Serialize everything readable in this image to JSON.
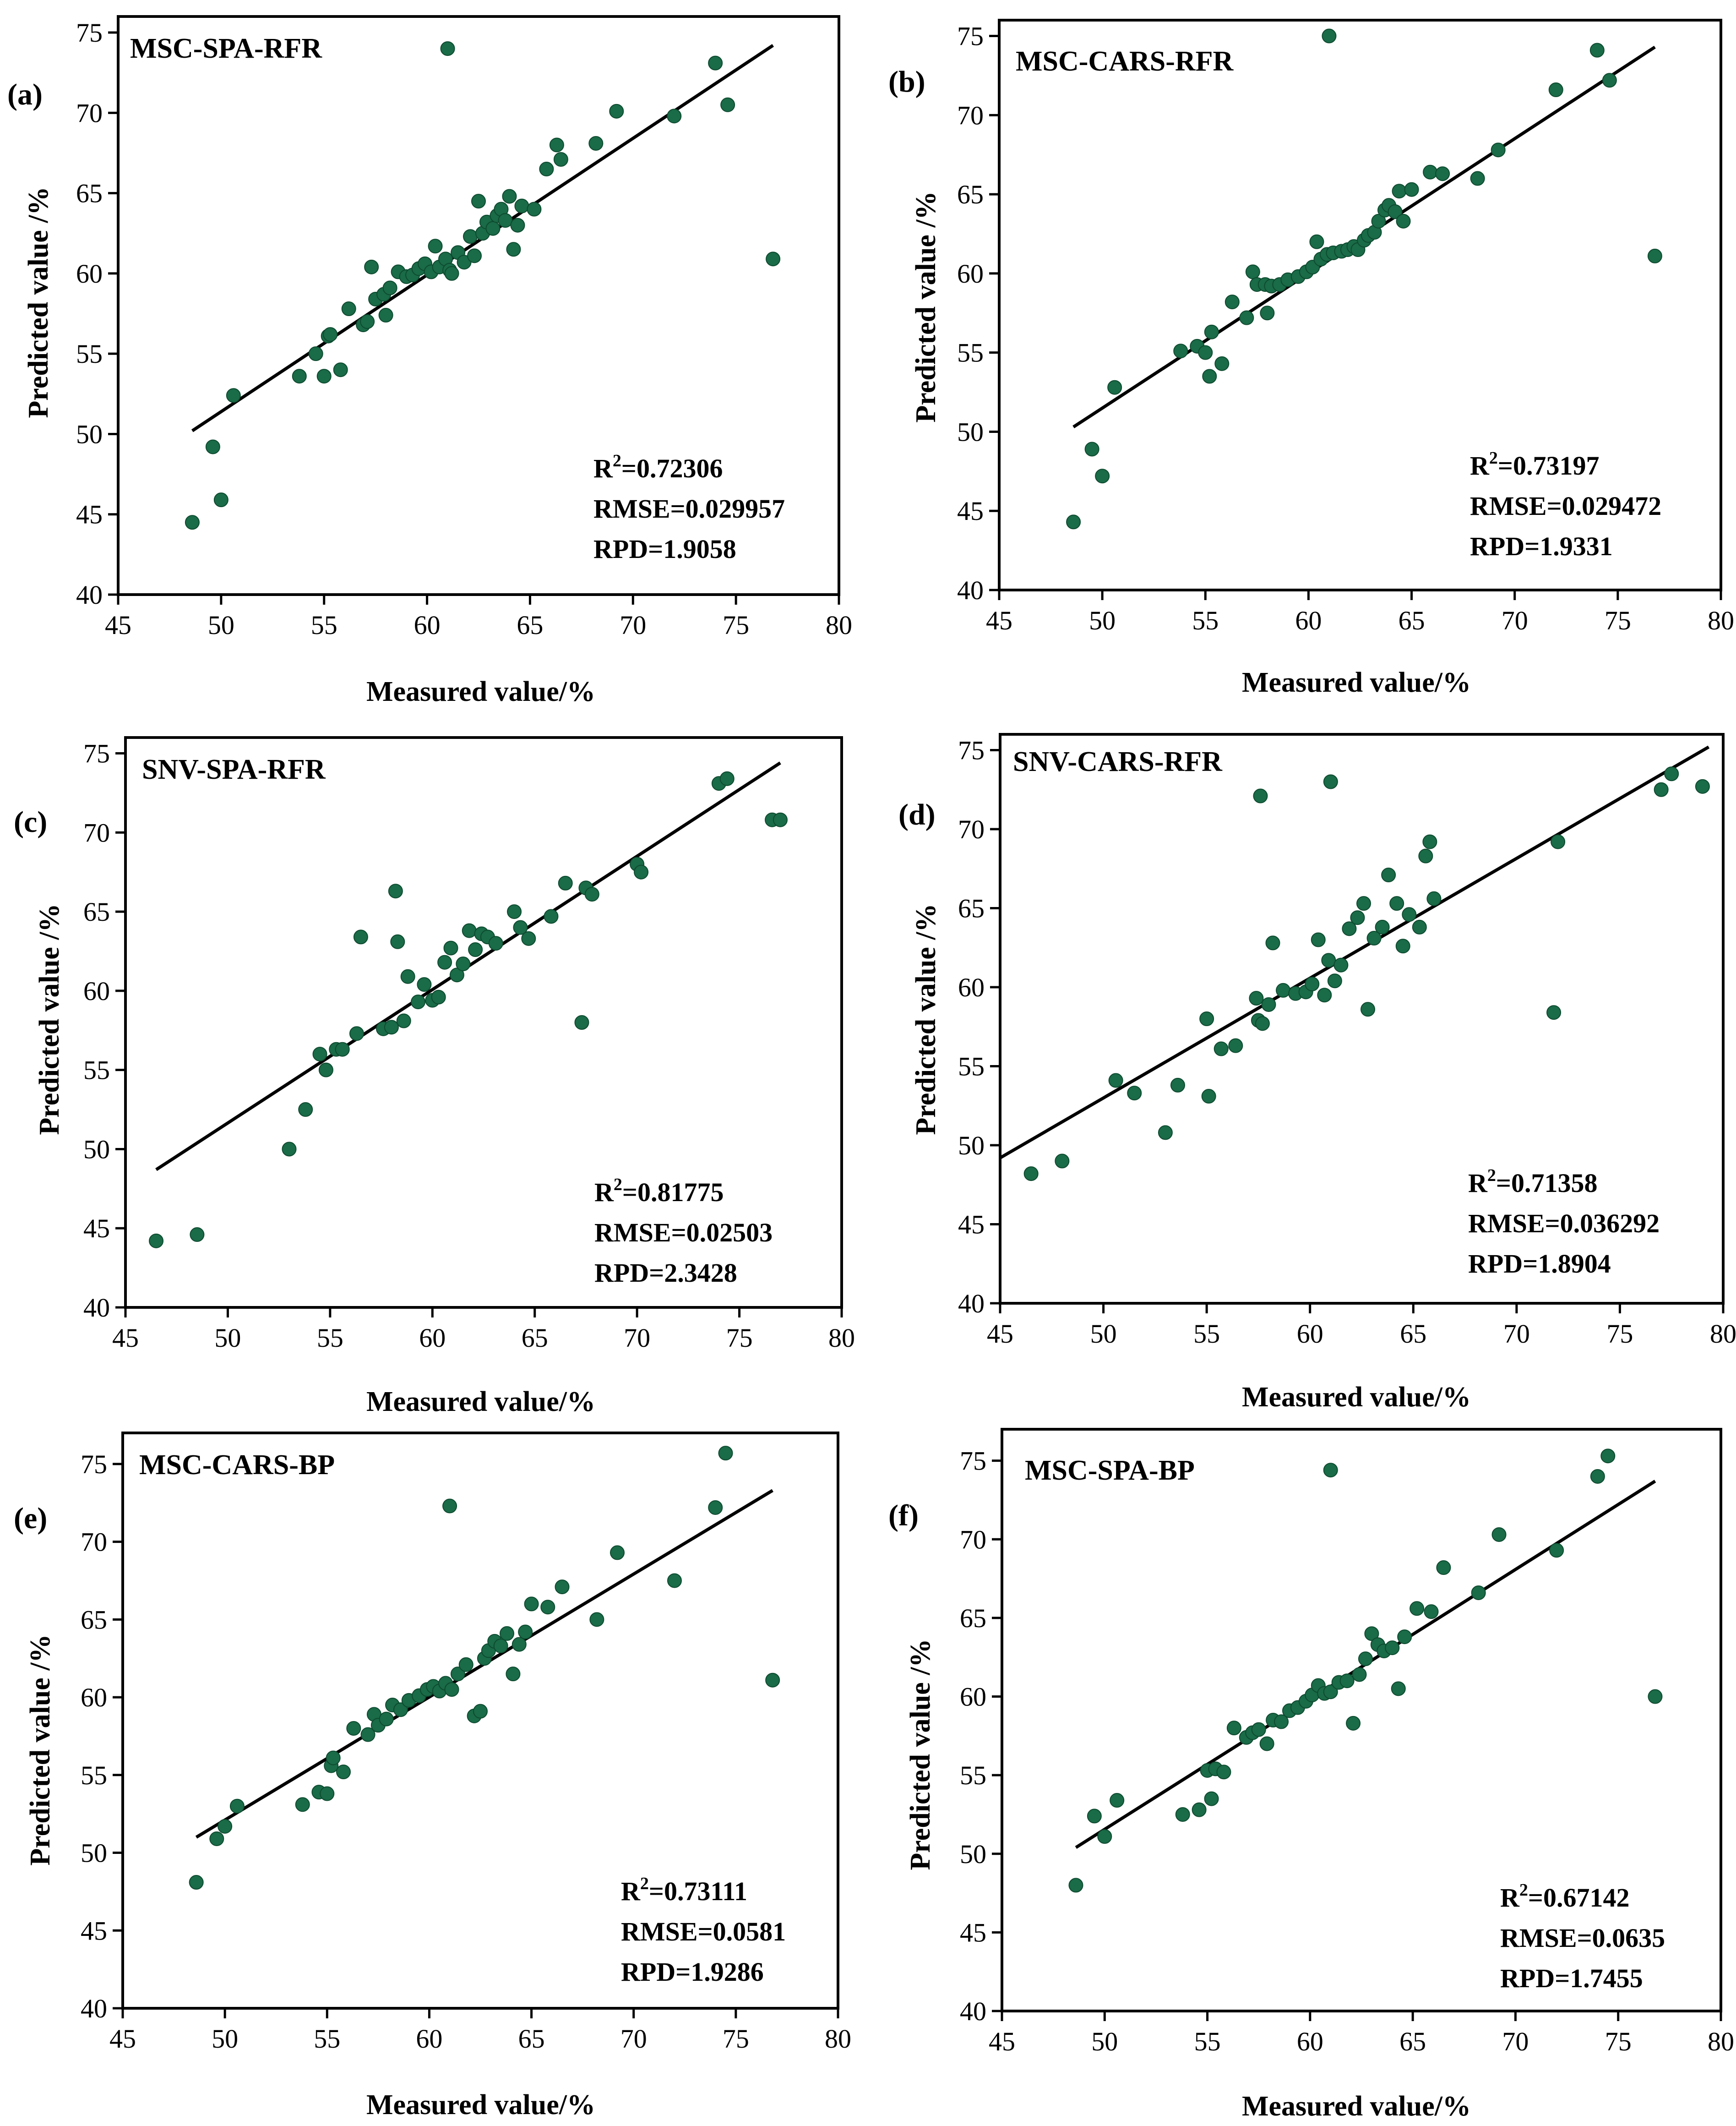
{
  "figure": {
    "point_color": "#1a6b47",
    "line_color": "#000000"
  },
  "chart_data": [
    {
      "panel": "(a)",
      "type": "scatter",
      "title": "MSC-SPA-RFR",
      "xlabel": "Measured value/%",
      "ylabel": "Predicted value /%",
      "xlim": [
        45,
        80
      ],
      "ylim": [
        40,
        76
      ],
      "xticks": [
        "45",
        "50",
        "55",
        "60",
        "65",
        "70",
        "75",
        "80"
      ],
      "yticks": [
        "40",
        "45",
        "50",
        "55",
        "60",
        "65",
        "70",
        "75"
      ],
      "stats": [
        "R2=0.72306",
        "RMSE=0.029957",
        "RPD=1.9058"
      ],
      "fit": {
        "x": [
          48.6,
          76.8
        ],
        "y": [
          50.2,
          74.2
        ]
      },
      "points": {
        "x": [
          48.6,
          49.6,
          50.0,
          50.6,
          53.8,
          54.6,
          55.0,
          55.2,
          55.3,
          55.8,
          56.2,
          56.9,
          57.1,
          57.3,
          57.5,
          57.9,
          58.0,
          58.2,
          58.6,
          59.0,
          59.3,
          59.6,
          59.9,
          60.2,
          60.4,
          60.6,
          60.9,
          61.1,
          61.2,
          61.5,
          61.8,
          62.1,
          62.3,
          62.5,
          62.7,
          62.9,
          63.2,
          63.4,
          63.6,
          63.8,
          64.0,
          64.2,
          64.4,
          64.6,
          65.2,
          65.8,
          66.3,
          66.5,
          68.2,
          69.2,
          72.0,
          74.0,
          74.6,
          76.8,
          61.0
        ],
        "y": [
          44.5,
          49.2,
          45.9,
          52.4,
          53.6,
          55.0,
          53.6,
          56.1,
          56.2,
          54.0,
          57.8,
          56.8,
          57.0,
          60.4,
          58.4,
          58.7,
          57.4,
          59.1,
          60.1,
          59.8,
          59.9,
          60.3,
          60.6,
          60.1,
          61.7,
          60.4,
          60.9,
          60.2,
          60.0,
          61.3,
          60.7,
          62.3,
          61.1,
          64.5,
          62.5,
          63.2,
          62.8,
          63.6,
          64.0,
          63.3,
          64.8,
          61.5,
          63.0,
          64.2,
          64.0,
          66.5,
          68.0,
          67.1,
          68.1,
          70.1,
          69.8,
          73.1,
          70.5,
          60.9,
          74.0
        ]
      }
    },
    {
      "panel": "(b)",
      "type": "scatter",
      "title": "MSC-CARS-RFR",
      "xlabel": "Measured value/%",
      "ylabel": "Predicted value /%",
      "xlim": [
        45,
        80
      ],
      "ylim": [
        40,
        76
      ],
      "xticks": [
        "45",
        "50",
        "55",
        "60",
        "65",
        "70",
        "75",
        "80"
      ],
      "yticks": [
        "40",
        "45",
        "50",
        "55",
        "60",
        "65",
        "70",
        "75"
      ],
      "stats": [
        "R2=0.73197",
        "RMSE=0.029472",
        "RPD=1.9331"
      ],
      "fit": {
        "x": [
          48.6,
          76.8
        ],
        "y": [
          50.3,
          74.3
        ]
      },
      "points": {
        "x": [
          48.6,
          49.5,
          50.0,
          50.6,
          53.8,
          54.6,
          55.0,
          55.2,
          55.3,
          55.8,
          56.3,
          57.0,
          57.3,
          57.5,
          57.9,
          58.0,
          58.2,
          58.6,
          59.0,
          59.5,
          59.9,
          60.2,
          60.4,
          60.6,
          60.9,
          61.2,
          61.6,
          61.9,
          62.2,
          62.4,
          62.7,
          62.9,
          63.2,
          63.4,
          63.7,
          63.9,
          64.2,
          64.4,
          64.6,
          65.0,
          65.9,
          66.5,
          68.2,
          69.2,
          72.0,
          74.0,
          74.6,
          76.8,
          61.0
        ],
        "y": [
          44.3,
          48.9,
          47.2,
          52.8,
          55.1,
          55.4,
          55.0,
          53.5,
          56.3,
          54.3,
          58.2,
          57.2,
          60.1,
          59.3,
          59.3,
          57.5,
          59.2,
          59.3,
          59.6,
          59.8,
          60.1,
          60.4,
          62.0,
          60.9,
          61.2,
          61.3,
          61.4,
          61.5,
          61.7,
          61.5,
          62.1,
          62.4,
          62.6,
          63.3,
          64.0,
          64.3,
          63.9,
          65.2,
          63.3,
          65.3,
          66.4,
          66.3,
          66.0,
          67.8,
          71.6,
          74.1,
          72.2,
          61.1,
          75.0
        ]
      }
    },
    {
      "panel": "(c)",
      "type": "scatter",
      "title": "SNV-SPA-RFR",
      "xlabel": "Measured value/%",
      "ylabel": "Predicted value /%",
      "xlim": [
        45,
        80
      ],
      "ylim": [
        40,
        76
      ],
      "xticks": [
        "45",
        "50",
        "55",
        "60",
        "65",
        "70",
        "75",
        "80"
      ],
      "yticks": [
        "40",
        "45",
        "50",
        "55",
        "60",
        "65",
        "70",
        "75"
      ],
      "stats": [
        "R2=0.81775",
        "RMSE=0.02503",
        "RPD=2.3428"
      ],
      "fit": {
        "x": [
          46.5,
          77.0
        ],
        "y": [
          48.7,
          74.4
        ]
      },
      "points": {
        "x": [
          46.5,
          48.5,
          53.0,
          53.8,
          54.5,
          54.8,
          55.3,
          55.6,
          56.3,
          56.5,
          57.6,
          58.0,
          58.2,
          58.3,
          58.6,
          58.8,
          59.3,
          59.6,
          60.0,
          60.3,
          60.6,
          60.9,
          61.2,
          61.5,
          61.8,
          62.1,
          62.4,
          62.7,
          63.1,
          64.0,
          64.3,
          64.7,
          65.8,
          66.5,
          67.3,
          67.5,
          67.8,
          70.0,
          70.2,
          74.0,
          74.4,
          76.6,
          77.0
        ],
        "y": [
          44.2,
          44.6,
          50.0,
          52.5,
          56.0,
          55.0,
          56.3,
          56.3,
          57.3,
          63.4,
          57.6,
          57.7,
          66.3,
          63.1,
          58.1,
          60.9,
          59.3,
          60.4,
          59.4,
          59.6,
          61.8,
          62.7,
          61.0,
          61.7,
          63.8,
          62.6,
          63.6,
          63.4,
          63.0,
          65.0,
          64.0,
          63.3,
          64.7,
          66.8,
          58.0,
          66.5,
          66.1,
          68.0,
          67.5,
          73.1,
          73.4,
          70.8,
          70.8
        ]
      }
    },
    {
      "panel": "(d)",
      "type": "scatter",
      "title": "SNV-CARS-RFR",
      "xlabel": "Measured value/%",
      "ylabel": "Predicted value /%",
      "xlim": [
        45,
        80
      ],
      "ylim": [
        40,
        76
      ],
      "xticks": [
        "45",
        "50",
        "55",
        "60",
        "65",
        "70",
        "75",
        "80"
      ],
      "yticks": [
        "40",
        "45",
        "50",
        "55",
        "60",
        "65",
        "70",
        "75"
      ],
      "stats": [
        "R2=0.71358",
        "RMSE=0.036292",
        "RPD=1.8904"
      ],
      "fit": {
        "x": [
          45.0,
          79.3
        ],
        "y": [
          49.2,
          75.2
        ]
      },
      "points": {
        "x": [
          46.5,
          48.0,
          50.6,
          51.5,
          53.0,
          53.6,
          55.0,
          55.1,
          55.7,
          56.4,
          57.4,
          57.5,
          57.7,
          58.0,
          58.2,
          58.7,
          59.3,
          59.8,
          60.1,
          60.4,
          60.7,
          60.9,
          61.2,
          61.5,
          61.9,
          62.3,
          62.6,
          62.8,
          63.1,
          63.5,
          63.8,
          64.2,
          64.5,
          64.8,
          65.3,
          65.6,
          65.8,
          66.0,
          71.8,
          72.0,
          77.0,
          77.5,
          79.0,
          57.6,
          61.0
        ],
        "y": [
          48.2,
          49.0,
          54.1,
          53.3,
          50.8,
          53.8,
          58.0,
          53.1,
          56.1,
          56.3,
          59.3,
          57.9,
          57.7,
          58.9,
          62.8,
          59.8,
          59.6,
          59.7,
          60.2,
          63.0,
          59.5,
          61.7,
          60.4,
          61.4,
          63.7,
          64.4,
          65.3,
          58.6,
          63.1,
          63.8,
          67.1,
          65.3,
          62.6,
          64.6,
          63.8,
          68.3,
          69.2,
          65.6,
          58.4,
          69.2,
          72.5,
          73.5,
          72.7,
          72.1,
          73.0
        ]
      }
    },
    {
      "panel": "(e)",
      "type": "scatter",
      "title": "MSC-CARS-BP",
      "xlabel": "Measured value/%",
      "ylabel": "Predicted value /%",
      "xlim": [
        45,
        80
      ],
      "ylim": [
        40,
        77
      ],
      "xticks": [
        "45",
        "50",
        "55",
        "60",
        "65",
        "70",
        "75",
        "80"
      ],
      "yticks": [
        "40",
        "45",
        "50",
        "55",
        "60",
        "65",
        "70",
        "75"
      ],
      "stats": [
        "R2=0.73111",
        "RMSE=0.0581",
        "RPD=1.9286"
      ],
      "fit": {
        "x": [
          48.6,
          76.8
        ],
        "y": [
          51.0,
          73.3
        ]
      },
      "points": {
        "x": [
          48.6,
          49.6,
          50.0,
          50.6,
          53.8,
          54.6,
          55.0,
          55.2,
          55.3,
          55.8,
          56.3,
          57.0,
          57.3,
          57.5,
          57.9,
          58.2,
          58.6,
          59.0,
          59.5,
          59.9,
          60.2,
          60.5,
          60.8,
          61.1,
          61.4,
          61.8,
          62.2,
          62.5,
          62.7,
          62.9,
          63.2,
          63.5,
          63.8,
          64.1,
          64.4,
          64.7,
          65.0,
          65.8,
          66.5,
          68.2,
          69.2,
          72.0,
          74.0,
          74.5,
          76.8,
          61.0
        ],
        "y": [
          48.1,
          50.9,
          51.7,
          53.0,
          53.1,
          53.9,
          53.8,
          55.6,
          56.1,
          55.2,
          58.0,
          57.6,
          58.9,
          58.2,
          58.6,
          59.5,
          59.2,
          59.8,
          60.1,
          60.5,
          60.7,
          60.4,
          60.9,
          60.5,
          61.5,
          62.1,
          58.8,
          59.1,
          62.5,
          63.0,
          63.6,
          63.3,
          64.1,
          61.5,
          63.4,
          64.2,
          66.0,
          65.8,
          67.1,
          65.0,
          69.3,
          67.5,
          72.2,
          75.7,
          61.1,
          72.3
        ]
      }
    },
    {
      "panel": "(f)",
      "type": "scatter",
      "title": "MSC-SPA-BP",
      "xlabel": "Measured value/%",
      "ylabel": "Predicted value /%",
      "xlim": [
        45,
        80
      ],
      "ylim": [
        40,
        77
      ],
      "xticks": [
        "45",
        "50",
        "55",
        "60",
        "65",
        "70",
        "75",
        "80"
      ],
      "yticks": [
        "40",
        "45",
        "50",
        "55",
        "60",
        "65",
        "70",
        "75"
      ],
      "stats": [
        "R2=0.67142",
        "RMSE=0.0635",
        "RPD=1.7455"
      ],
      "fit": {
        "x": [
          48.6,
          76.8
        ],
        "y": [
          50.4,
          73.7
        ]
      },
      "points": {
        "x": [
          48.6,
          49.5,
          50.0,
          50.6,
          53.8,
          54.6,
          55.0,
          55.2,
          55.4,
          55.8,
          56.3,
          56.9,
          57.2,
          57.5,
          57.9,
          58.2,
          58.6,
          59.0,
          59.4,
          59.8,
          60.1,
          60.4,
          60.7,
          61.0,
          61.4,
          61.8,
          62.1,
          62.4,
          62.7,
          63.0,
          63.3,
          63.6,
          64.0,
          64.3,
          64.6,
          65.2,
          65.9,
          66.5,
          68.2,
          69.2,
          72.0,
          74.0,
          74.5,
          76.8,
          61.0
        ],
        "y": [
          48.0,
          52.4,
          51.1,
          53.4,
          52.5,
          52.8,
          55.3,
          53.5,
          55.4,
          55.2,
          58.0,
          57.4,
          57.7,
          57.9,
          57.0,
          58.5,
          58.4,
          59.1,
          59.3,
          59.7,
          60.1,
          60.7,
          60.2,
          60.3,
          60.9,
          61.0,
          58.3,
          61.4,
          62.4,
          64.0,
          63.3,
          62.9,
          63.1,
          60.5,
          63.8,
          65.6,
          65.4,
          68.2,
          66.6,
          70.3,
          69.3,
          74.0,
          75.3,
          60.0,
          74.4
        ]
      }
    }
  ]
}
